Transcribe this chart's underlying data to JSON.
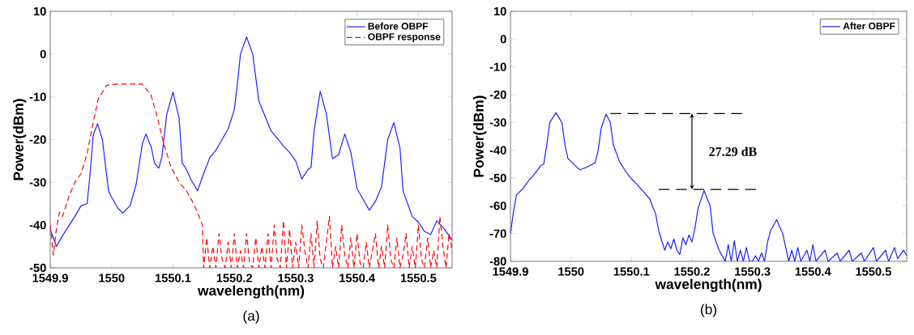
{
  "chart_data": [
    {
      "type": "line",
      "title": "(a)",
      "xlabel": "wavelength(nm)",
      "ylabel": "Power(dBm)",
      "xlim": [
        1549.9,
        1550.555
      ],
      "ylim": [
        -50,
        10
      ],
      "xticks": [
        1549.9,
        1550,
        1550.1,
        1550.2,
        1550.3,
        1550.4,
        1550.5
      ],
      "yticks": [
        -50,
        -40,
        -30,
        -20,
        -10,
        0,
        10
      ],
      "legend": "top right",
      "grid": false,
      "marker": "none",
      "series": [
        {
          "name": "Before OBPF",
          "color": "#2020ff",
          "line_style": "solid",
          "x": [
            1549.9,
            1549.91,
            1549.92,
            1549.94,
            1549.95,
            1549.96,
            1549.965,
            1549.97,
            1549.977,
            1549.985,
            1549.995,
            1550.0,
            1550.01,
            1550.018,
            1550.03,
            1550.04,
            1550.05,
            1550.056,
            1550.065,
            1550.07,
            1550.077,
            1550.082,
            1550.09,
            1550.1,
            1550.11,
            1550.115,
            1550.12,
            1550.13,
            1550.14,
            1550.15,
            1550.16,
            1550.17,
            1550.18,
            1550.19,
            1550.2,
            1550.205,
            1550.21,
            1550.22,
            1550.23,
            1550.24,
            1550.25,
            1550.26,
            1550.27,
            1550.28,
            1550.29,
            1550.3,
            1550.31,
            1550.32,
            1550.325,
            1550.33,
            1550.34,
            1550.35,
            1550.36,
            1550.37,
            1550.38,
            1550.39,
            1550.4,
            1550.41,
            1550.42,
            1550.43,
            1550.44,
            1550.45,
            1550.46,
            1550.47,
            1550.475,
            1550.49,
            1550.5,
            1550.51,
            1550.52,
            1550.53,
            1550.54,
            1550.555
          ],
          "values": [
            -41,
            -45,
            -42.5,
            -38,
            -35.5,
            -35,
            -28,
            -19,
            -16.3,
            -20,
            -32,
            -33.5,
            -36,
            -37.2,
            -35.5,
            -30.5,
            -21,
            -18.7,
            -22,
            -25.5,
            -26.7,
            -24,
            -14,
            -8.9,
            -15,
            -25.5,
            -26.5,
            -29.5,
            -32,
            -28,
            -24.2,
            -22.5,
            -20,
            -17.5,
            -13,
            -7,
            0,
            4,
            0,
            -11,
            -14.5,
            -18,
            -19.7,
            -21.5,
            -23,
            -25,
            -29.2,
            -27,
            -26.5,
            -18,
            -8.7,
            -14,
            -24.5,
            -23.5,
            -18.7,
            -23,
            -31.5,
            -34,
            -36.5,
            -34.5,
            -31,
            -20,
            -16,
            -22,
            -32,
            -38,
            -39.3,
            -41.5,
            -42.2,
            -39,
            -40.5,
            -43.5
          ]
        },
        {
          "name": "OBPF response",
          "color": "#ff0000",
          "line_style": "dashed",
          "x": [
            1549.9,
            1549.905,
            1549.91,
            1549.915,
            1549.92,
            1549.93,
            1549.94,
            1549.95,
            1549.96,
            1549.969,
            1549.978,
            1549.992,
            1550.01,
            1550.03,
            1550.05,
            1550.064,
            1550.075,
            1550.085,
            1550.097,
            1550.11,
            1550.122,
            1550.13,
            1550.14,
            1550.148,
            1550.15,
            1550.155,
            1550.16,
            1550.165,
            1550.17,
            1550.175,
            1550.18,
            1550.185,
            1550.19,
            1550.195,
            1550.2,
            1550.205,
            1550.21,
            1550.215,
            1550.22,
            1550.225,
            1550.23,
            1550.235,
            1550.24,
            1550.245,
            1550.25,
            1550.255,
            1550.26,
            1550.265,
            1550.27,
            1550.275,
            1550.28,
            1550.285,
            1550.29,
            1550.295,
            1550.3,
            1550.305,
            1550.31,
            1550.315,
            1550.32,
            1550.325,
            1550.33,
            1550.335,
            1550.34,
            1550.345,
            1550.35,
            1550.355,
            1550.36,
            1550.365,
            1550.37,
            1550.375,
            1550.38,
            1550.385,
            1550.39,
            1550.395,
            1550.4,
            1550.405,
            1550.41,
            1550.415,
            1550.42,
            1550.425,
            1550.43,
            1550.435,
            1550.44,
            1550.445,
            1550.45,
            1550.455,
            1550.46,
            1550.465,
            1550.47,
            1550.475,
            1550.48,
            1550.485,
            1550.49,
            1550.495,
            1550.5,
            1550.505,
            1550.51,
            1550.515,
            1550.52,
            1550.525,
            1550.53,
            1550.535,
            1550.54,
            1550.545,
            1550.55,
            1550.555
          ],
          "values": [
            -40,
            -47,
            -41,
            -37,
            -38,
            -33.5,
            -30,
            -28,
            -23.4,
            -16.7,
            -10.6,
            -7.3,
            -7,
            -7,
            -7,
            -9.5,
            -15,
            -21,
            -26.5,
            -30,
            -32,
            -34,
            -37,
            -40,
            -50,
            -43,
            -50,
            -45,
            -50,
            -42,
            -48,
            -50,
            -44,
            -50,
            -42,
            -50,
            -46,
            -50,
            -42,
            -49,
            -50,
            -43,
            -50,
            -45,
            -50,
            -42,
            -50,
            -40,
            -48,
            -50,
            -39,
            -50,
            -41,
            -50,
            -44,
            -50,
            -40,
            -46,
            -50,
            -42,
            -50,
            -39,
            -48,
            -50,
            -44,
            -38,
            -50,
            -45,
            -50,
            -40,
            -47,
            -50,
            -43,
            -50,
            -42,
            -49,
            -50,
            -44,
            -50,
            -46,
            -42,
            -50,
            -45,
            -50,
            -40,
            -48,
            -50,
            -43,
            -50,
            -47,
            -42,
            -50,
            -45,
            -50,
            -40,
            -48,
            -50,
            -43,
            -50,
            -46,
            -50,
            -38,
            -45,
            -50,
            -42,
            -46
          ]
        }
      ]
    },
    {
      "type": "line",
      "title": "(b)",
      "xlabel": "wavelength(nm)",
      "ylabel": "Power(dBm)",
      "xlim": [
        1549.9,
        1550.555
      ],
      "ylim": [
        -80,
        10
      ],
      "xticks": [
        1549.9,
        1550,
        1550.1,
        1550.2,
        1550.3,
        1550.4,
        1550.5
      ],
      "yticks": [
        -80,
        -70,
        -60,
        -50,
        -40,
        -30,
        -20,
        -10,
        0,
        10
      ],
      "legend": "top right",
      "grid": false,
      "marker": "none",
      "series": [
        {
          "name": "After OBPF",
          "color": "#2020ff",
          "line_style": "solid",
          "x": [
            1549.9,
            1549.905,
            1549.91,
            1549.92,
            1549.93,
            1549.94,
            1549.95,
            1549.955,
            1549.96,
            1549.965,
            1549.975,
            1549.985,
            1549.99,
            1549.995,
            1550.0,
            1550.01,
            1550.015,
            1550.025,
            1550.04,
            1550.045,
            1550.05,
            1550.058,
            1550.065,
            1550.07,
            1550.08,
            1550.09,
            1550.1,
            1550.11,
            1550.12,
            1550.13,
            1550.14,
            1550.145,
            1550.15,
            1550.155,
            1550.16,
            1550.165,
            1550.17,
            1550.175,
            1550.18,
            1550.185,
            1550.19,
            1550.195,
            1550.2,
            1550.205,
            1550.21,
            1550.22,
            1550.23,
            1550.235,
            1550.24,
            1550.245,
            1550.25,
            1550.255,
            1550.26,
            1550.265,
            1550.27,
            1550.275,
            1550.28,
            1550.285,
            1550.29,
            1550.295,
            1550.3,
            1550.305,
            1550.31,
            1550.315,
            1550.32,
            1550.325,
            1550.33,
            1550.34,
            1550.35,
            1550.355,
            1550.36,
            1550.365,
            1550.37,
            1550.375,
            1550.38,
            1550.39,
            1550.395,
            1550.4,
            1550.405,
            1550.42,
            1550.425,
            1550.44,
            1550.445,
            1550.46,
            1550.465,
            1550.48,
            1550.485,
            1550.5,
            1550.505,
            1550.52,
            1550.525,
            1550.535,
            1550.54,
            1550.55,
            1550.555
          ],
          "values": [
            -70,
            -62,
            -56,
            -54,
            -51,
            -48.5,
            -45.5,
            -45,
            -38,
            -30,
            -26.5,
            -30,
            -38,
            -43,
            -44,
            -46.2,
            -47,
            -46.2,
            -44.5,
            -40,
            -32,
            -27,
            -30,
            -38,
            -44,
            -47.5,
            -50.3,
            -52.5,
            -55,
            -57.5,
            -63,
            -69,
            -72.5,
            -76,
            -73,
            -75.5,
            -72,
            -76,
            -77.5,
            -71.5,
            -74,
            -70.5,
            -73,
            -68,
            -61,
            -54.5,
            -60,
            -70,
            -73,
            -76,
            -78,
            -80,
            -74,
            -80,
            -72.5,
            -80,
            -76,
            -80,
            -75,
            -80,
            -80,
            -78,
            -80,
            -77,
            -80,
            -73,
            -69,
            -65,
            -70,
            -75,
            -80,
            -76,
            -80,
            -75,
            -80,
            -76,
            -80,
            -74,
            -80,
            -76,
            -80,
            -77,
            -80,
            -76,
            -80,
            -77,
            -80,
            -75,
            -80,
            -76,
            -80,
            -75,
            -79,
            -76,
            -78
          ]
        }
      ],
      "ref_lines": [
        {
          "axis": "y",
          "value": -26.8,
          "color": "#000000",
          "line_style": "dashed"
        },
        {
          "axis": "y",
          "value": -54.1,
          "color": "#000000",
          "line_style": "dashed"
        }
      ],
      "annotations": [
        "27.29 dB"
      ]
    }
  ]
}
